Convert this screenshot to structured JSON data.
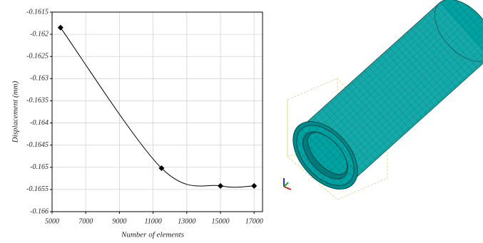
{
  "chart_data": {
    "type": "line",
    "x_label": "Number of elements",
    "y_label": "Displacement  (mm)",
    "x": [
      5500,
      11500,
      15000,
      17000
    ],
    "values": [
      -0.16185,
      -0.16502,
      -0.16542,
      -0.16542
    ],
    "color": "#000000",
    "xlim": [
      5000,
      17500
    ],
    "xticks": [
      5000,
      7000,
      9000,
      11000,
      13000,
      15000,
      17000
    ],
    "ylim": [
      -0.166,
      -0.1615
    ],
    "yticks": [
      -0.166,
      -0.1655,
      -0.165,
      -0.1645,
      -0.164,
      -0.1635,
      -0.163,
      -0.1625,
      -0.162,
      -0.1615
    ],
    "grid": true
  }
}
